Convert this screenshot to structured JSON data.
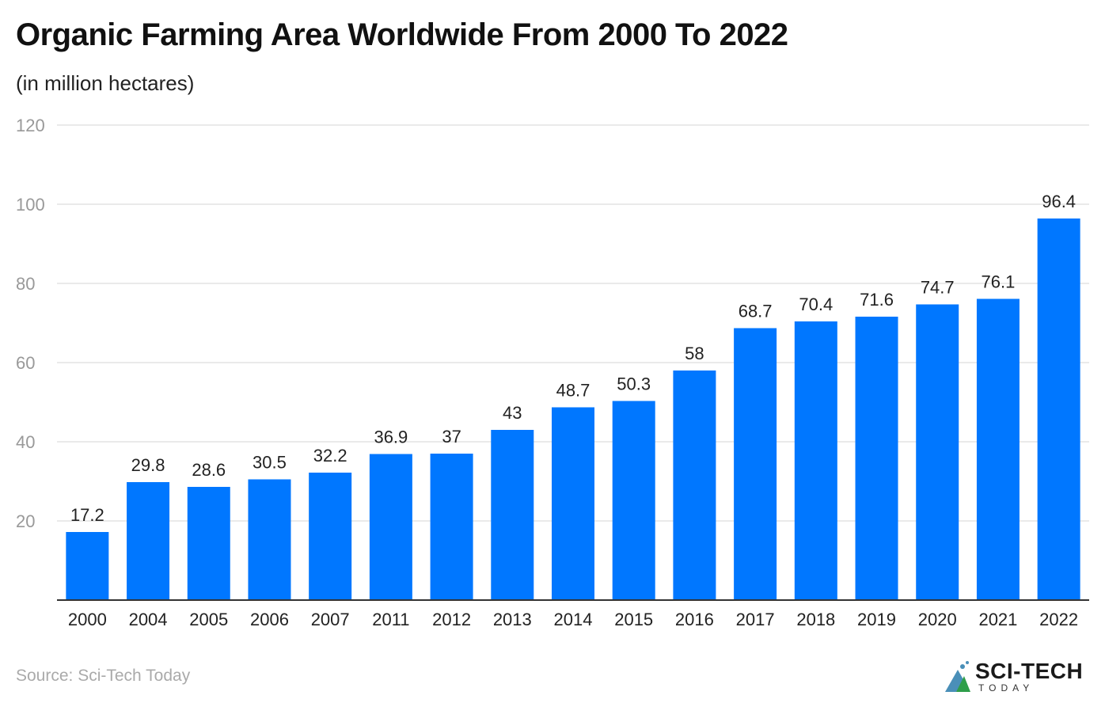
{
  "title": "Organic Farming Area Worldwide From 2000 To 2022",
  "subtitle": "(in million hectares)",
  "source": "Source: Sci-Tech Today",
  "logo": {
    "main": "SCI-TECH",
    "sub": "TODAY"
  },
  "colors": {
    "bar": "#0077ff",
    "grid": "#e3e3e3",
    "axis": "#333333",
    "tick": "#999999"
  },
  "chart_data": {
    "type": "bar",
    "title": "Organic Farming Area Worldwide From 2000 To 2022",
    "subtitle": "(in million hectares)",
    "categories": [
      "2000",
      "2004",
      "2005",
      "2006",
      "2007",
      "2011",
      "2012",
      "2013",
      "2014",
      "2015",
      "2016",
      "2017",
      "2018",
      "2019",
      "2020",
      "2021",
      "2022"
    ],
    "values": [
      17.2,
      29.8,
      28.6,
      30.5,
      32.2,
      36.9,
      37,
      43,
      48.7,
      50.3,
      58,
      68.7,
      70.4,
      71.6,
      74.7,
      76.1,
      96.4
    ],
    "yticks": [
      20,
      40,
      60,
      80,
      100,
      120
    ],
    "ylim": [
      0,
      120
    ],
    "grid": true,
    "data_labels": true
  }
}
